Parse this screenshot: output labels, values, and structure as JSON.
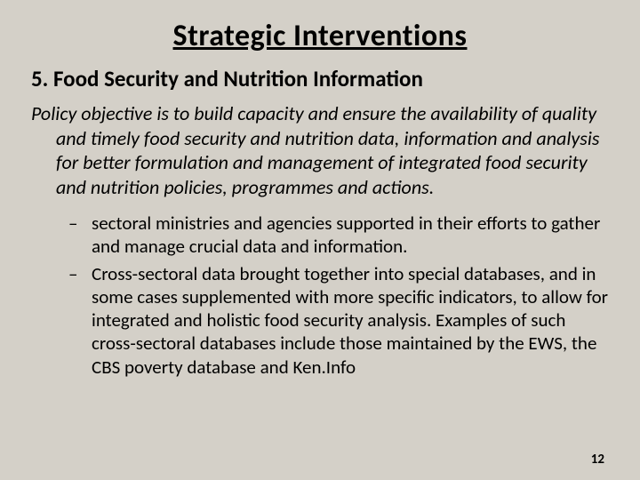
{
  "title": "Strategic Interventions",
  "section_heading": "5. Food Security and Nutrition Information",
  "policy_text": "Policy objective is to build capacity and ensure the availability of quality and timely food security and nutrition data, information and analysis for better formulation and management of integrated food security and nutrition policies, programmes and actions.",
  "bullets": {
    "item_0": "sectoral ministries and agencies supported in their efforts to gather and manage crucial data and information.",
    "item_1": "Cross-sectoral data brought together into special databases, and in some cases supplemented with more specific indicators, to allow for integrated and holistic food security analysis. Examples of such cross-sectoral databases include those maintained by the EWS, the CBS poverty database and Ken.Info"
  },
  "page_number": "12",
  "styling": {
    "background_color": "#d4d0c8",
    "text_color": "#000000",
    "title_fontsize": 34,
    "title_weight": "bold",
    "title_decoration": "underline",
    "heading_fontsize": 25,
    "heading_weight": "bold",
    "body_fontsize": 22,
    "body_style": "italic",
    "bullet_fontsize": 21,
    "page_number_fontsize": 15,
    "font_family": "Calibri",
    "line_height": 1.25
  }
}
